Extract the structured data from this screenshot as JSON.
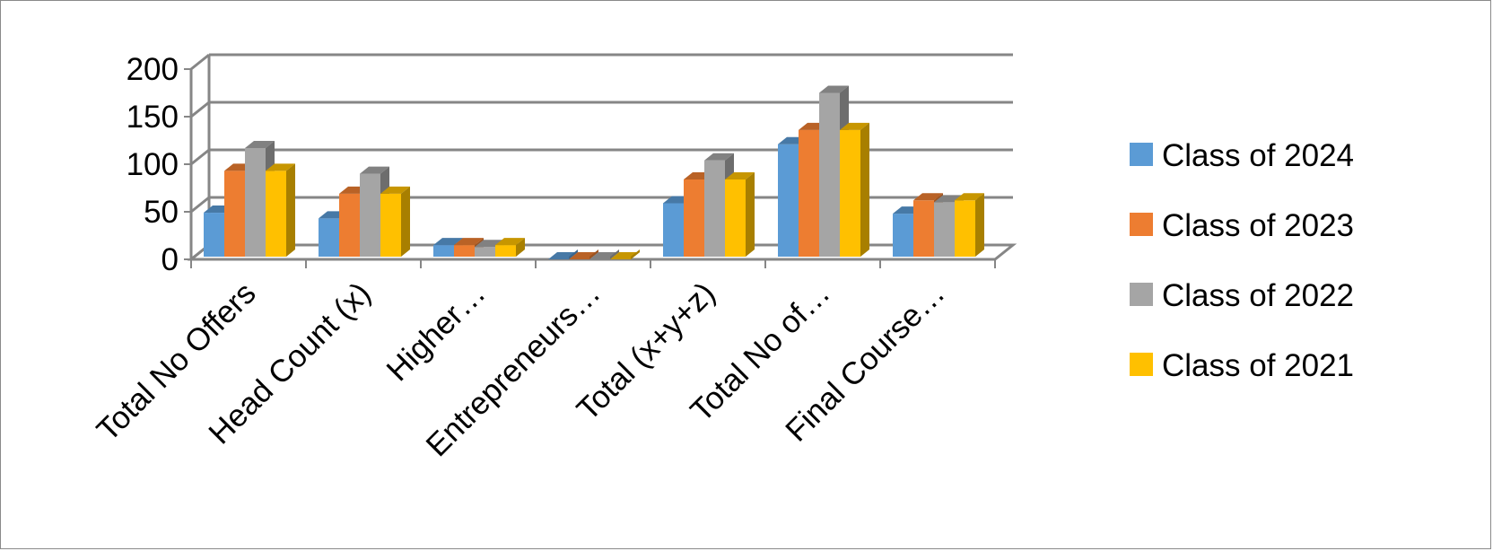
{
  "chart_data": {
    "type": "bar",
    "style": "3d-clustered-column",
    "categories": [
      "Total No Offers",
      "Head Count (x)",
      "Higher…",
      "Entrepreneurs…",
      "Total (x+y+z)",
      "Total No of…",
      "Final Course…"
    ],
    "series": [
      {
        "name": "Class of 2024",
        "color": "#5B9BD5",
        "values": [
          49,
          43,
          15,
          0,
          59,
          121,
          48
        ]
      },
      {
        "name": "Class of 2023",
        "color": "#ED7D31",
        "values": [
          93,
          69,
          15,
          0,
          84,
          136,
          62
        ]
      },
      {
        "name": "Class of 2022",
        "color": "#A5A5A5",
        "values": [
          117,
          90,
          13,
          0,
          104,
          175,
          60
        ]
      },
      {
        "name": "Class of 2021",
        "color": "#FFC000",
        "values": [
          93,
          69,
          15,
          0,
          84,
          136,
          62
        ]
      }
    ],
    "y_ticks": [
      "0",
      "50",
      "100",
      "150",
      "200"
    ],
    "ylim": [
      0,
      200
    ],
    "grid": true,
    "legend_position": "right",
    "title": "",
    "xlabel": "",
    "ylabel": ""
  }
}
